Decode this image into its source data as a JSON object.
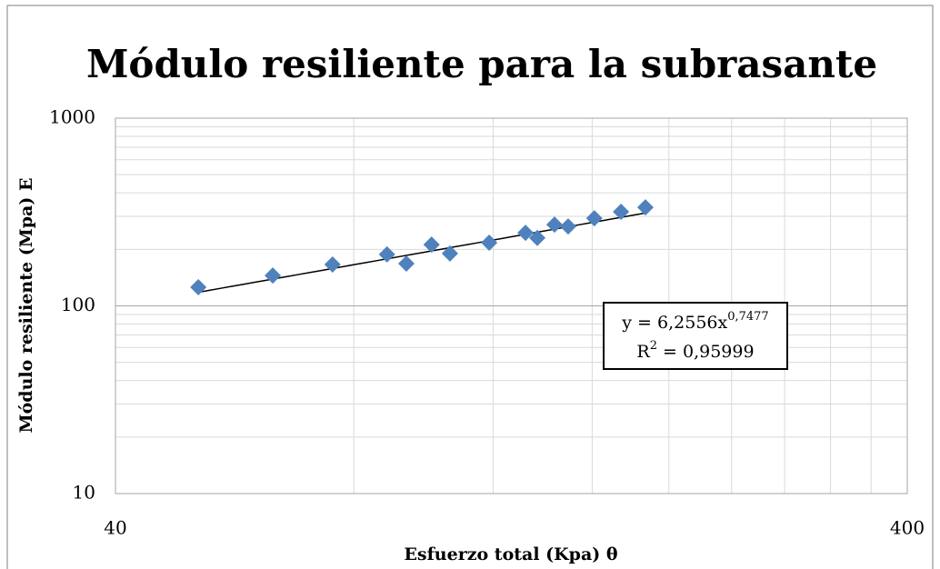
{
  "chart_data": {
    "type": "scatter",
    "title": "Módulo resiliente para la subrasante",
    "xlabel": "Esfuerzo total (Kpa) θ",
    "ylabel": "Módulo resiliente (Mpa) E",
    "x": [
      50.9,
      63.2,
      75.2,
      88.1,
      93.2,
      100.3,
      105.8,
      118.6,
      131.8,
      136.4,
      143.4,
      149.2,
      161,
      174,
      186.8
    ],
    "series": [
      {
        "name": "Módulo resiliente",
        "color": "#4f81bd",
        "values": [
          125.7,
          145,
          166,
          188,
          168,
          212,
          190,
          217,
          245,
          230,
          271,
          265,
          293,
          317,
          335
        ]
      }
    ],
    "xlim": [
      40,
      400
    ],
    "ylim": [
      10,
      1000
    ],
    "xticks": [
      40,
      400
    ],
    "yticks": [
      10,
      100,
      1000
    ],
    "x_minor_grid": [
      80,
      120,
      160,
      200,
      240,
      280,
      320,
      360
    ],
    "y_minor_grid": [
      20,
      30,
      40,
      50,
      60,
      70,
      80,
      90,
      200,
      300,
      400,
      500,
      600,
      700,
      800,
      900
    ],
    "xlog": true,
    "ylog": true,
    "grid": true,
    "trendline": {
      "type": "power",
      "a": 6.2556,
      "b": 0.7477,
      "color": "#000000",
      "equation": "y = 6,2556x",
      "exponent": "0,7477",
      "r_label": "R",
      "r_power": "2",
      "r_value": " = 0,95999"
    }
  }
}
